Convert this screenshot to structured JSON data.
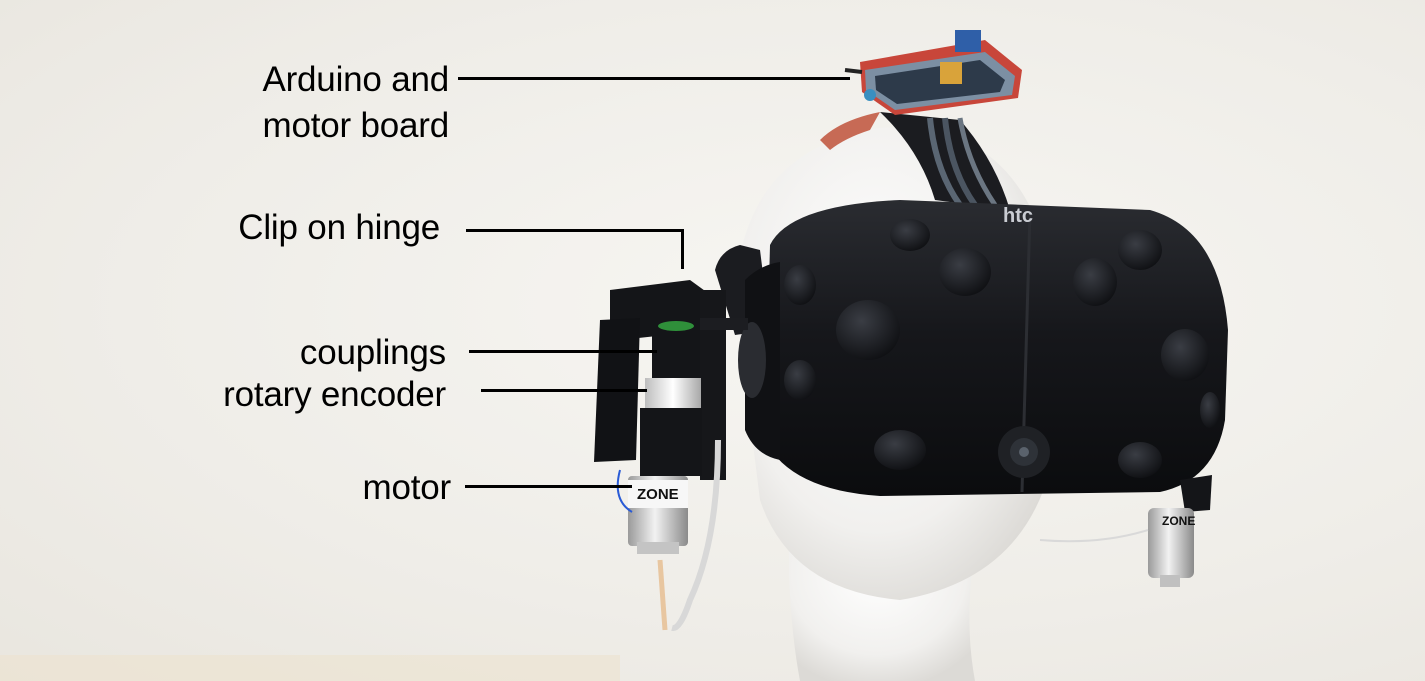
{
  "labels": {
    "arduino_line1": "Arduino and",
    "arduino_line2": "motor board",
    "clip_hinge": "Clip on hinge",
    "couplings": "couplings",
    "rotary_encoder": "rotary encoder",
    "motor": "motor"
  },
  "headset": {
    "brand_mark": "htc",
    "motor_label_left": "ZONE",
    "motor_label_right": "ZONE"
  },
  "colors": {
    "background": "#f3f1ec",
    "headset_body": "#141518",
    "mannequin": "#f4f3f1",
    "label_text": "#000000",
    "circuit_board": "#c8463a",
    "coupling_green": "#2f8f3a"
  }
}
